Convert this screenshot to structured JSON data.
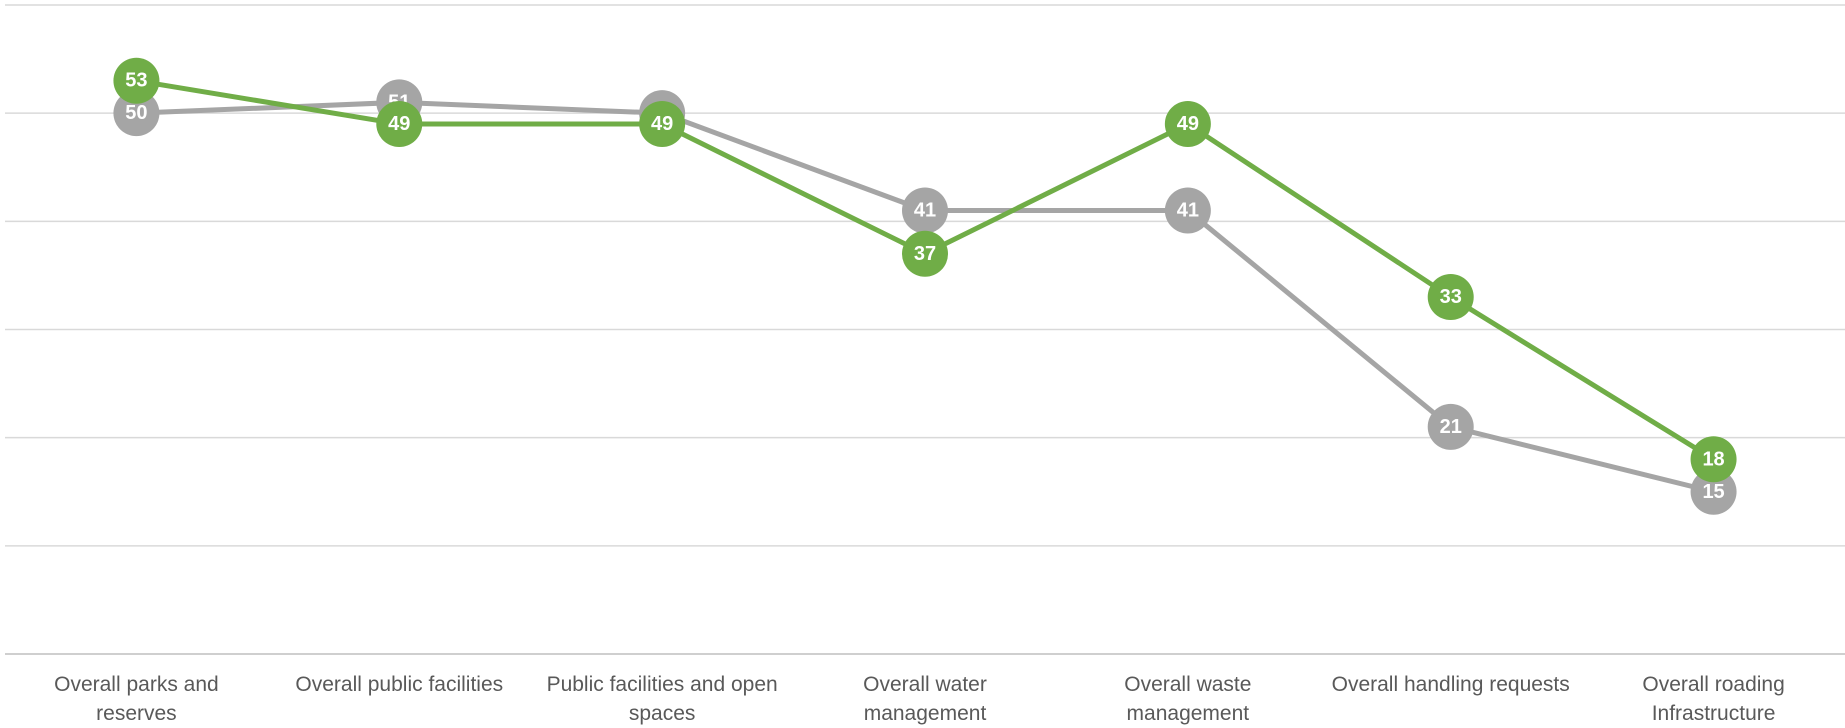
{
  "chart_data": {
    "type": "line",
    "categories": [
      "Overall parks and reserves",
      "Overall public facilities",
      "Public facilities and open spaces",
      "Overall water management",
      "Overall waste management",
      "Overall handling requests",
      "Overall roading Infrastructure"
    ],
    "series": [
      {
        "color": "#a5a5a5",
        "values": [
          50,
          51,
          50,
          41,
          41,
          21,
          15
        ]
      },
      {
        "color": "#70ad47",
        "values": [
          53,
          49,
          49,
          37,
          49,
          33,
          18
        ]
      }
    ],
    "ylim": [
      0,
      60
    ],
    "yticks": [
      0,
      10,
      20,
      30,
      40,
      50,
      60
    ],
    "grid": true
  }
}
